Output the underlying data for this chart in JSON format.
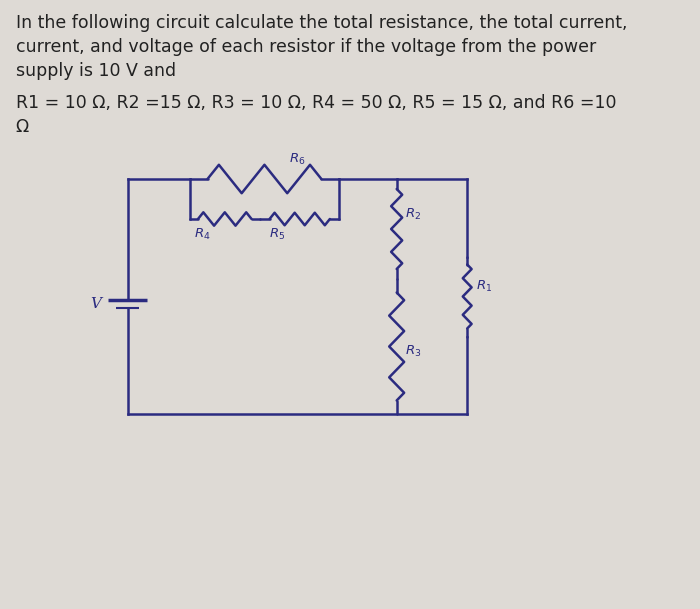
{
  "bg_color": "#dedad5",
  "circuit_color": "#2b2b80",
  "text_color": "#222222",
  "title_line1": "In the following circuit calculate the total resistance, the total current,",
  "title_line2": "current, and voltage of each resistor if the voltage from the power",
  "title_line3": "supply is 10 V and",
  "param_line1": "R1 = 10 Ω, R2 =15 Ω, R3 = 10 Ω, R4 = 50 Ω, R5 = 15 Ω, and R6 =10",
  "param_line2": "Ω",
  "title_fontsize": 12.5,
  "param_fontsize": 12.5,
  "lw": 1.8
}
